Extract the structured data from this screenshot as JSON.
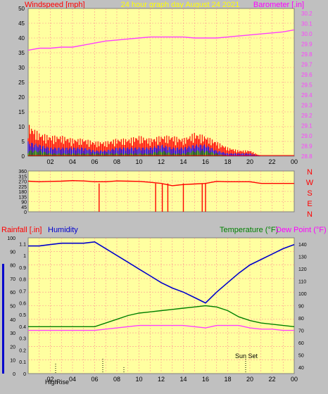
{
  "header": {
    "left_label": "Windspeed [mph]",
    "center_label": "24 hour graph day   August 24 2021",
    "right_label": "Barometer [.in]"
  },
  "colors": {
    "background": "#c0c0c0",
    "plot_bg": "#ffffa0",
    "grid": "#ff9090",
    "wind": "#ff0000",
    "gust_avg": "#0000ff",
    "wind_low": "#008000",
    "barometer": "#ff40ff",
    "direction": "#ff0000",
    "humidity": "#0000cc",
    "temperature": "#008000",
    "dewpoint": "#ff40ff",
    "header_yellow": "#ffff00"
  },
  "x_axis": {
    "ticks": [
      "02",
      "04",
      "06",
      "08",
      "10",
      "12",
      "14",
      "16",
      "18",
      "20",
      "22",
      "00"
    ]
  },
  "bottom_labels": {
    "left_series": "Rainfall [.in]",
    "humidity": "Humidity",
    "temperature": "Temperature (°F)",
    "dewpoint": "Dew Point (°F)",
    "sun_set": "Sun Set",
    "marker_high": "High",
    "marker_rise": "Rise"
  },
  "direction_letters": [
    "N",
    "W",
    "S",
    "E",
    "N"
  ],
  "chart_data": [
    {
      "type": "line",
      "name": "wind-barometer",
      "x_unit": "hour",
      "left_axis": {
        "label": "Windspeed [mph]",
        "ticks": [
          0,
          5,
          10,
          15,
          20,
          25,
          30,
          35,
          40,
          45,
          50
        ],
        "ylim": [
          0,
          50
        ]
      },
      "right_axis": {
        "label": "Barometer [.in]",
        "ticks": [
          28.8,
          28.9,
          29.0,
          29.1,
          29.2,
          29.3,
          29.4,
          29.5,
          29.6,
          29.7,
          29.8,
          29.9,
          30.0,
          30.1,
          30.2
        ],
        "ylim": [
          28.8,
          30.25
        ]
      },
      "series": [
        {
          "name": "Barometer",
          "axis": "right",
          "x": [
            0,
            1,
            2,
            3,
            4,
            5,
            6,
            7,
            8,
            9,
            10,
            11,
            12,
            13,
            14,
            15,
            16,
            17,
            18,
            19,
            20,
            21,
            22,
            23,
            24
          ],
          "y": [
            29.84,
            29.86,
            29.86,
            29.87,
            29.87,
            29.89,
            29.91,
            29.93,
            29.94,
            29.95,
            29.96,
            29.97,
            29.97,
            29.97,
            29.97,
            29.96,
            29.96,
            29.96,
            29.97,
            29.98,
            29.99,
            30.0,
            30.01,
            30.02,
            30.04
          ]
        },
        {
          "name": "Windspeed",
          "axis": "left",
          "x": [
            0,
            1,
            2,
            3,
            4,
            5,
            6,
            7,
            8,
            9,
            10,
            11,
            12,
            13,
            14,
            15,
            16,
            17,
            18,
            19,
            20,
            21,
            22,
            23,
            24
          ],
          "y": [
            5,
            4,
            3,
            3,
            3,
            3,
            2,
            2,
            3,
            3,
            3,
            3,
            4,
            3,
            3,
            4,
            4,
            2,
            1,
            1,
            1,
            0,
            0,
            0,
            0
          ]
        },
        {
          "name": "Gust",
          "axis": "left",
          "x": [
            0,
            1,
            2,
            3,
            4,
            5,
            6,
            7,
            8,
            9,
            10,
            11,
            12,
            13,
            14,
            15,
            16,
            17,
            18,
            19,
            20,
            21,
            22,
            23,
            24
          ],
          "y": [
            11,
            8,
            7,
            7,
            6,
            6,
            5,
            5,
            6,
            6,
            7,
            6,
            7,
            7,
            6,
            8,
            7,
            5,
            3,
            2,
            2,
            0,
            0,
            0,
            0
          ]
        },
        {
          "name": "Average",
          "axis": "left",
          "x": [
            0,
            1,
            2,
            3,
            4,
            5,
            6,
            7,
            8,
            9,
            10,
            11,
            12,
            13,
            14,
            15,
            16,
            17,
            18,
            19,
            20,
            21,
            22,
            23,
            24
          ],
          "y": [
            2,
            2,
            1,
            1,
            1,
            1,
            1,
            1,
            1,
            1,
            1,
            1,
            2,
            1,
            1,
            2,
            2,
            1,
            0,
            0,
            0,
            0,
            0,
            0,
            0
          ]
        }
      ]
    },
    {
      "type": "line",
      "name": "wind-direction",
      "x_unit": "hour",
      "y_axis": {
        "ticks": [
          0,
          45,
          90,
          135,
          180,
          225,
          270,
          315,
          360
        ],
        "ylim": [
          0,
          360
        ]
      },
      "series": [
        {
          "name": "Direction",
          "x": [
            0,
            1,
            2,
            3,
            4,
            5,
            6,
            7,
            8,
            9,
            10,
            11,
            12,
            13,
            14,
            15,
            16,
            17,
            18,
            19,
            20,
            21,
            22,
            23,
            24
          ],
          "y": [
            270,
            265,
            268,
            270,
            275,
            272,
            265,
            265,
            272,
            270,
            268,
            260,
            250,
            230,
            240,
            245,
            250,
            268,
            265,
            265,
            265,
            250,
            250,
            250,
            250
          ]
        }
      ]
    },
    {
      "type": "line",
      "name": "temp-humidity",
      "x_unit": "hour",
      "left_axis": {
        "label": "Rainfall [.in]",
        "ticks": [
          0,
          10,
          20,
          30,
          40,
          50,
          60,
          70,
          80,
          90,
          100
        ],
        "ylim": [
          0,
          100
        ]
      },
      "inner_left_axis": {
        "ticks": [
          0,
          0.1,
          0.2,
          0.3,
          0.4,
          0.5,
          0.6,
          0.7,
          0.8,
          0.9,
          1,
          1.1
        ],
        "ylim": [
          0,
          1.15
        ]
      },
      "right_axis": {
        "ticks": [
          40,
          50,
          60,
          70,
          80,
          90,
          100,
          110,
          120,
          130,
          140
        ],
        "ylim": [
          35,
          145
        ]
      },
      "series": [
        {
          "name": "Humidity",
          "axis": "left",
          "x": [
            0,
            1,
            2,
            3,
            4,
            5,
            6,
            7,
            8,
            9,
            10,
            11,
            12,
            13,
            14,
            15,
            16,
            17,
            18,
            19,
            20,
            21,
            22,
            23,
            24
          ],
          "y": [
            94,
            94,
            95,
            96,
            96,
            96,
            97,
            92,
            87,
            82,
            77,
            72,
            67,
            63,
            60,
            56,
            52,
            60,
            67,
            74,
            80,
            84,
            88,
            92,
            95
          ]
        },
        {
          "name": "Temperature",
          "axis": "right",
          "x": [
            0,
            1,
            2,
            3,
            4,
            5,
            6,
            7,
            8,
            9,
            10,
            11,
            12,
            13,
            14,
            15,
            16,
            17,
            18,
            19,
            20,
            21,
            22,
            23,
            24
          ],
          "y": [
            73,
            73,
            73,
            73,
            73,
            73,
            73,
            76,
            79,
            82,
            84,
            85,
            86,
            87,
            88,
            89,
            90,
            89,
            86,
            81,
            78,
            76,
            75,
            74,
            73
          ]
        },
        {
          "name": "Dew Point",
          "axis": "right",
          "x": [
            0,
            1,
            2,
            3,
            4,
            5,
            6,
            7,
            8,
            9,
            10,
            11,
            12,
            13,
            14,
            15,
            16,
            17,
            18,
            19,
            20,
            21,
            22,
            23,
            24
          ],
          "y": [
            70,
            70,
            70,
            70,
            70,
            70,
            70,
            71,
            72,
            73,
            74,
            74,
            74,
            74,
            74,
            73,
            72,
            74,
            74,
            74,
            72,
            71,
            71,
            70,
            70
          ]
        }
      ]
    }
  ]
}
